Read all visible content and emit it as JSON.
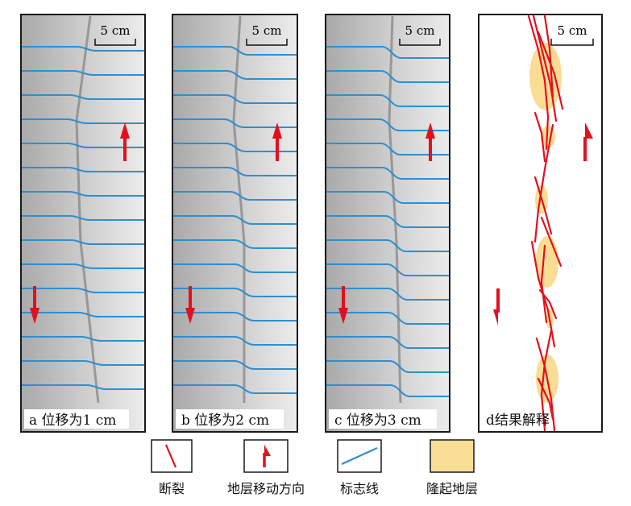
{
  "panels": [
    {
      "id": "a",
      "caption": "a 位移为1 cm",
      "scale_label": "5 cm"
    },
    {
      "id": "b",
      "caption": "b 位移为2 cm",
      "scale_label": "5 cm"
    },
    {
      "id": "c",
      "caption": "c 位移为3 cm",
      "scale_label": "5 cm"
    },
    {
      "id": "d",
      "caption": "d结果解释",
      "scale_label": "5 cm"
    }
  ],
  "legend": [
    {
      "icon": "fault-line-icon",
      "label": "断裂"
    },
    {
      "icon": "movement-arrow-icon",
      "label": "地层移动方向"
    },
    {
      "icon": "marker-line-icon",
      "label": "标志线"
    },
    {
      "icon": "uplift-patch-icon",
      "label": "隆起地层"
    }
  ],
  "colors": {
    "marker_line": "#2f8fd0",
    "fault": "#e2101e",
    "arrow": "#e2101e",
    "uplift": "#f9dd94",
    "frame": "#1a1a1a"
  }
}
